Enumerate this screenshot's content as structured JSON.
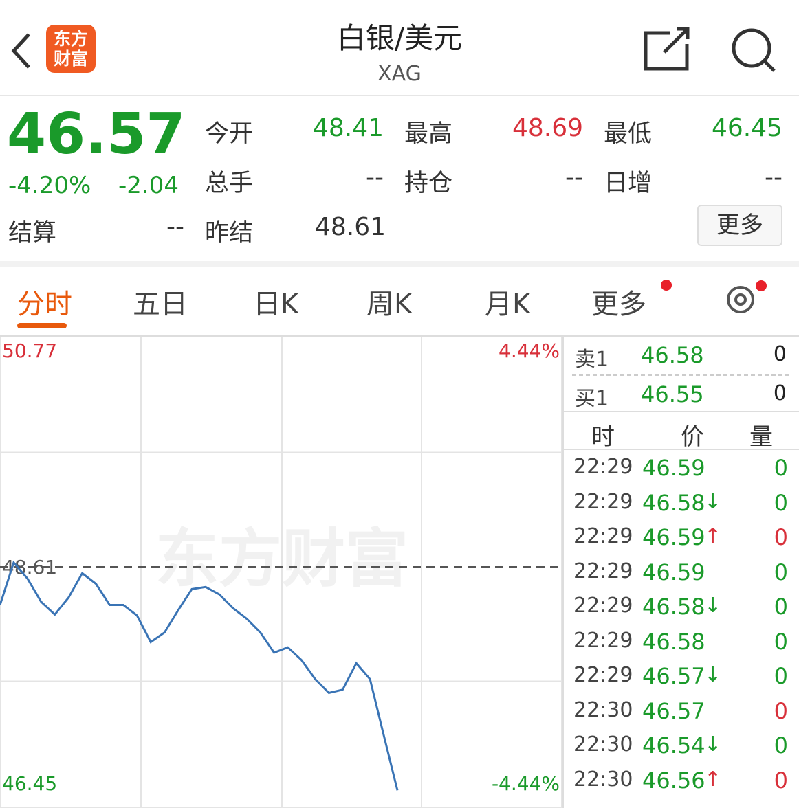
{
  "header": {
    "title": "白银/美元",
    "subtitle": "XAG",
    "logo": [
      "东方",
      "财富"
    ]
  },
  "quote": {
    "price": "46.57",
    "change_pct": "-4.20%",
    "change": "-2.04",
    "fields": [
      {
        "label": "今开",
        "value": "48.41",
        "color": "green"
      },
      {
        "label": "最高",
        "value": "48.69",
        "color": "red"
      },
      {
        "label": "最低",
        "value": "46.45",
        "color": "green"
      },
      {
        "label": "总手",
        "value": "--",
        "color": "gray"
      },
      {
        "label": "持仓",
        "value": "--",
        "color": "gray"
      },
      {
        "label": "日增",
        "value": "--",
        "color": "gray"
      }
    ],
    "settle": {
      "label": "结算",
      "value": "--"
    },
    "prev_settle": {
      "label": "昨结",
      "value": "48.61"
    },
    "more_button": "更多"
  },
  "tabs": {
    "items": [
      "分时",
      "五日",
      "日K",
      "周K",
      "月K",
      "更多"
    ],
    "active": 0
  },
  "chart_data": {
    "type": "line",
    "watermark": "东方财富",
    "color": "#3a74b5",
    "values": [
      48.25,
      48.65,
      48.5,
      48.28,
      48.16,
      48.32,
      48.55,
      48.45,
      48.25,
      48.25,
      48.15,
      47.9,
      47.99,
      48.2,
      48.4,
      48.42,
      48.35,
      48.22,
      48.12,
      47.99,
      47.8,
      47.85,
      47.73,
      47.55,
      47.42,
      47.45,
      47.7,
      47.55,
      47.02,
      46.5
    ],
    "ylim": [
      46.45,
      50.77
    ],
    "yticks": [
      50.77,
      48.61,
      46.45
    ],
    "reference": 48.61,
    "y2lim": [
      -4.44,
      4.44
    ],
    "y2ticks": [
      {
        "value": 4.44,
        "label": "4.44%"
      },
      {
        "value": -4.44,
        "label": "-4.44%"
      }
    ]
  },
  "order_book": {
    "sell": {
      "label": "卖1",
      "price": "46.58",
      "volume": "0"
    },
    "buy": {
      "label": "买1",
      "price": "46.55",
      "volume": "0"
    }
  },
  "trades": {
    "columns": [
      "时",
      "价",
      "量"
    ],
    "rows": [
      {
        "time": "22:29",
        "price": "46.59",
        "arrow": "",
        "volume": "0",
        "volume_color": "green"
      },
      {
        "time": "22:29",
        "price": "46.58",
        "arrow": "↓",
        "volume": "0",
        "volume_color": "green"
      },
      {
        "time": "22:29",
        "price": "46.59",
        "arrow": "↑",
        "volume": "0",
        "volume_color": "red"
      },
      {
        "time": "22:29",
        "price": "46.59",
        "arrow": "",
        "volume": "0",
        "volume_color": "green"
      },
      {
        "time": "22:29",
        "price": "46.58",
        "arrow": "↓",
        "volume": "0",
        "volume_color": "green"
      },
      {
        "time": "22:29",
        "price": "46.58",
        "arrow": "",
        "volume": "0",
        "volume_color": "green"
      },
      {
        "time": "22:29",
        "price": "46.57",
        "arrow": "↓",
        "volume": "0",
        "volume_color": "green"
      },
      {
        "time": "22:30",
        "price": "46.57",
        "arrow": "",
        "volume": "0",
        "volume_color": "red"
      },
      {
        "time": "22:30",
        "price": "46.54",
        "arrow": "↓",
        "volume": "0",
        "volume_color": "green"
      },
      {
        "time": "22:30",
        "price": "46.56",
        "arrow": "↑",
        "volume": "0",
        "volume_color": "red"
      }
    ]
  }
}
